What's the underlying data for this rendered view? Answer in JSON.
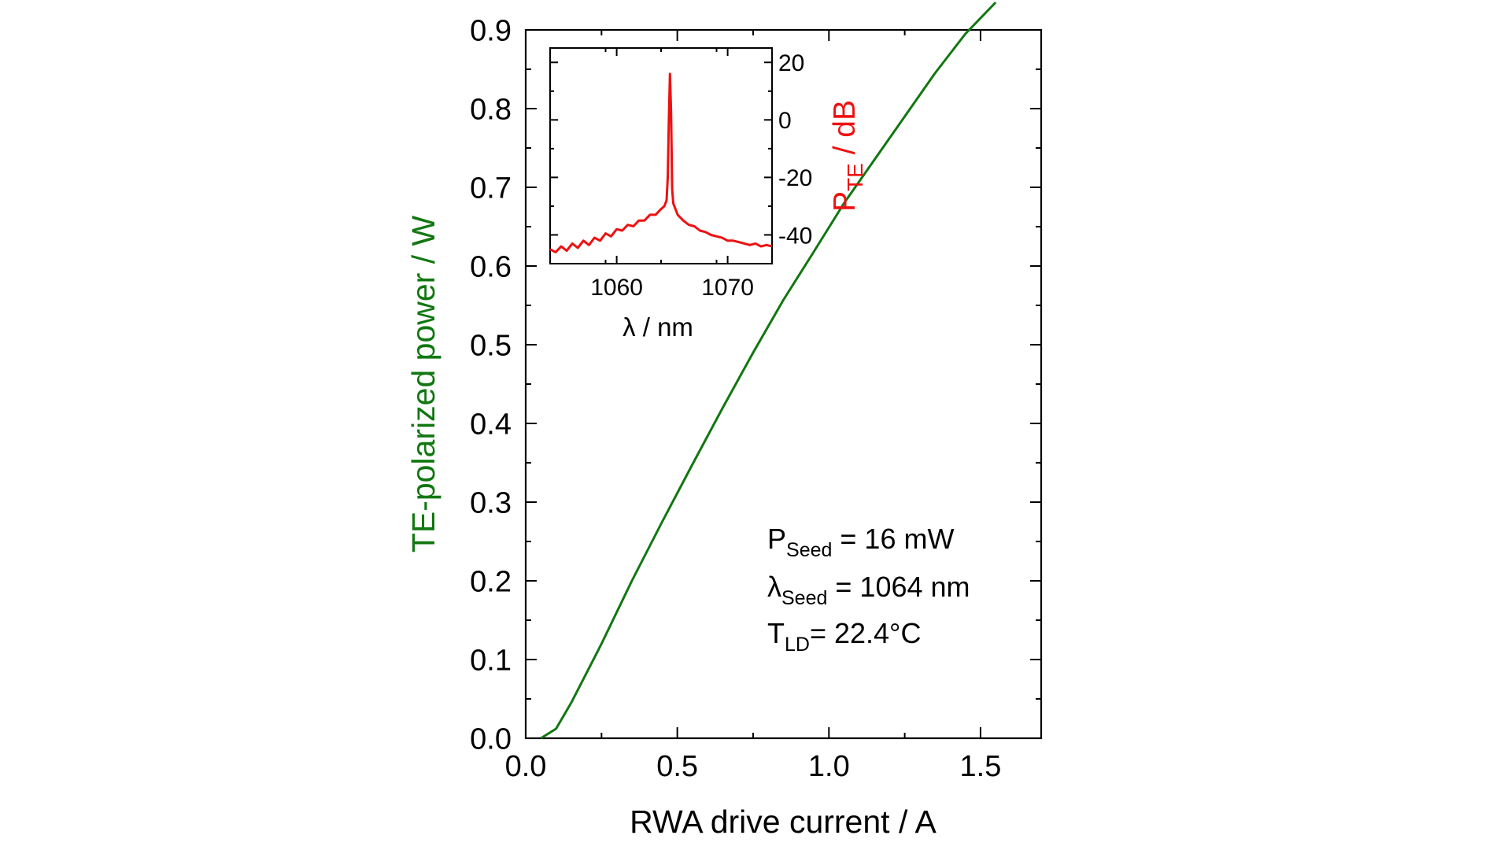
{
  "chart_data": [
    {
      "type": "line",
      "xlabel": "RWA drive current / A",
      "ylabel": "TE-polarized power / W",
      "xlim": [
        0.0,
        1.7
      ],
      "ylim": [
        0.0,
        0.9
      ],
      "xticks": [
        0.0,
        0.5,
        1.0,
        1.5
      ],
      "xtick_labels": [
        "0.0",
        "0.5",
        "1.0",
        "1.5"
      ],
      "yticks": [
        0.0,
        0.1,
        0.2,
        0.3,
        0.4,
        0.5,
        0.6,
        0.7,
        0.8,
        0.9
      ],
      "ytick_labels": [
        "0.0",
        "0.1",
        "0.2",
        "0.3",
        "0.4",
        "0.5",
        "0.6",
        "0.7",
        "0.8",
        "0.9"
      ],
      "grid": false,
      "line_color": "#117711",
      "label_color": "#117711",
      "series": [
        {
          "x": [
            0.05,
            0.1,
            0.15,
            0.25,
            0.35,
            0.45,
            0.55,
            0.65,
            0.75,
            0.85,
            0.95,
            1.05,
            1.15,
            1.25,
            1.35,
            1.45,
            1.55
          ],
          "y": [
            0.0,
            0.012,
            0.045,
            0.12,
            0.2,
            0.275,
            0.348,
            0.42,
            0.49,
            0.557,
            0.618,
            0.68,
            0.735,
            0.79,
            0.845,
            0.895,
            0.935
          ]
        }
      ],
      "annotations": {
        "seed_power": {
          "main": "P",
          "sub": "Seed",
          "rest": " = 16 mW"
        },
        "seed_wavelength": {
          "main": "λ",
          "sub": "Seed",
          "rest": " = 1064 nm"
        },
        "temperature": {
          "main": "T",
          "sub": "LD",
          "rest": "= 22.4°C"
        }
      }
    },
    {
      "type": "line",
      "role": "inset",
      "xlabel": "λ / nm",
      "ylabel": {
        "main": "P",
        "sub": "TE",
        "rest": " / dB"
      },
      "xlim": [
        1054,
        1074
      ],
      "ylim": [
        -50,
        25
      ],
      "xticks": [
        1060,
        1070
      ],
      "xtick_labels": [
        "1060",
        "1070"
      ],
      "yticks": [
        20,
        0,
        -20,
        -40
      ],
      "ytick_labels": [
        "20",
        "0",
        "-20",
        "-40"
      ],
      "grid": false,
      "line_color": "#ee1111",
      "label_color": "#ee1111",
      "series": [
        {
          "x": [
            1054.0,
            1054.5,
            1055.0,
            1055.5,
            1056.0,
            1056.5,
            1057.0,
            1057.5,
            1058.0,
            1058.5,
            1059.0,
            1059.5,
            1060.0,
            1060.5,
            1061.0,
            1061.5,
            1062.0,
            1062.5,
            1063.0,
            1063.5,
            1064.0,
            1064.3,
            1064.5,
            1064.6,
            1064.7,
            1064.8,
            1064.9,
            1065.0,
            1065.1,
            1065.3,
            1065.5,
            1066.0,
            1066.5,
            1067.0,
            1067.5,
            1068.0,
            1068.5,
            1069.0,
            1069.5,
            1070.0,
            1070.5,
            1071.0,
            1071.5,
            1072.0,
            1072.5,
            1073.0,
            1073.5,
            1074.0
          ],
          "y": [
            -45,
            -46,
            -44,
            -45.5,
            -43,
            -44.5,
            -42,
            -43.5,
            -41,
            -42,
            -39.5,
            -40.5,
            -38,
            -38.5,
            -36.5,
            -37,
            -35,
            -35,
            -33,
            -33,
            -31,
            -30,
            -28,
            -20,
            0,
            16,
            3,
            -24,
            -29,
            -31,
            -33,
            -35,
            -36.5,
            -37,
            -38.5,
            -39,
            -40,
            -40.5,
            -41,
            -42,
            -42,
            -42.5,
            -43,
            -43.5,
            -43,
            -44,
            -43.5,
            -44
          ]
        }
      ]
    }
  ]
}
